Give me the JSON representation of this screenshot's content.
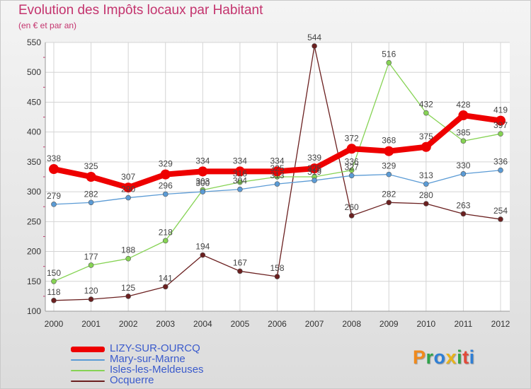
{
  "chart_data": {
    "type": "line",
    "title": "Evolution des Impôts locaux par Habitant",
    "subtitle": "(en € et par an)",
    "xlabel": "",
    "ylabel": "",
    "ylim": [
      100,
      550
    ],
    "yticks": [
      100,
      150,
      200,
      250,
      300,
      350,
      400,
      450,
      500,
      550
    ],
    "x": [
      "2000",
      "2001",
      "2002",
      "2003",
      "2004",
      "2005",
      "2006",
      "2007",
      "2008",
      "2009",
      "2010",
      "2011",
      "2012"
    ],
    "grid": true,
    "legend_position": "bottom-left",
    "series": [
      {
        "name": "Ocquerre",
        "color": "#6b2020",
        "width": 1.3,
        "values": [
          118,
          120,
          125,
          141,
          194,
          167,
          158,
          544,
          260,
          282,
          280,
          263,
          254
        ]
      },
      {
        "name": "Isles-les-Meldeuses",
        "color": "#86d354",
        "width": 1.3,
        "values": [
          150,
          177,
          188,
          218,
          303,
          316,
          325,
          325,
          336,
          516,
          432,
          385,
          397
        ]
      },
      {
        "name": "Mary-sur-Marne",
        "color": "#5b9bd5",
        "width": 1.3,
        "values": [
          279,
          282,
          290,
          296,
          300,
          304,
          313,
          319,
          327,
          329,
          313,
          330,
          336
        ]
      },
      {
        "name": "LIZY-SUR-OURCQ",
        "color": "#ee0000",
        "width": 8,
        "values": [
          338,
          325,
          307,
          329,
          334,
          334,
          334,
          339,
          372,
          368,
          375,
          428,
          419
        ]
      }
    ],
    "point_labels": {
      "Ocquerre": [
        "118",
        "120",
        "125",
        "141",
        "194",
        "167",
        "158",
        "544",
        "260",
        "282",
        "280",
        "263",
        "254"
      ],
      "Isles-les-Meldeuses": [
        "150",
        "177",
        "188",
        "218",
        "303",
        "316",
        "325",
        "325",
        "336",
        "516",
        "432",
        "385",
        "397"
      ],
      "Mary-sur-Marne": [
        "279",
        "282",
        "290",
        "296",
        "300",
        "304",
        "313",
        "319",
        "327",
        "329",
        "313",
        "330",
        "336"
      ],
      "LIZY-SUR-OURCQ": [
        "338",
        "325",
        "307",
        "329",
        "334",
        "334",
        "334",
        "339",
        "372",
        "368",
        "375",
        "428",
        "419"
      ]
    }
  },
  "legend": [
    {
      "name": "LIZY-SUR-OURCQ",
      "color": "#ee0000",
      "thickness": 8
    },
    {
      "name": "Mary-sur-Marne",
      "color": "#5b9bd5",
      "thickness": 2
    },
    {
      "name": "Isles-les-Meldeuses",
      "color": "#86d354",
      "thickness": 2
    },
    {
      "name": "Ocquerre",
      "color": "#6b2020",
      "thickness": 2
    }
  ],
  "logo": {
    "letters": [
      "P",
      "r",
      "o",
      "x",
      "i",
      "t",
      "i"
    ],
    "colors": [
      "#f08a1c",
      "#2fa34a",
      "#2f7fd5",
      "#e8b31a",
      "#2fa34a",
      "#e24a3a",
      "#2f7fd5"
    ]
  }
}
